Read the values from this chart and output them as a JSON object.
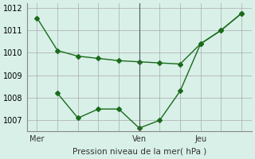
{
  "line1_x": [
    0,
    1,
    2,
    3,
    4,
    5,
    6,
    7,
    8,
    9,
    10
  ],
  "line1_y": [
    1011.55,
    1010.1,
    1009.85,
    1009.75,
    1009.65,
    1009.6,
    1009.55,
    1009.5,
    1010.4,
    1011.0,
    1011.75
  ],
  "line2_x": [
    1,
    2,
    3,
    4,
    5,
    6,
    7,
    8,
    9,
    10
  ],
  "line2_y": [
    1008.2,
    1007.1,
    1007.5,
    1007.5,
    1006.65,
    1007.0,
    1008.3,
    1010.4,
    1011.0,
    1011.75
  ],
  "line_color": "#1a6b1a",
  "marker": "D",
  "marker_size": 3,
  "xlabel": "Pression niveau de la mer( hPa )",
  "ylim": [
    1006.5,
    1012.2
  ],
  "yticks": [
    1007,
    1008,
    1009,
    1010,
    1011,
    1012
  ],
  "xtick_labels": [
    "Mer",
    "",
    "",
    "",
    "",
    "Ven",
    "",
    "",
    "Jeu",
    "",
    ""
  ],
  "xtick_positions": [
    0,
    1,
    2,
    3,
    4,
    5,
    6,
    7,
    8,
    9,
    10
  ],
  "vline_x": 5,
  "vline_color": "#555555",
  "bg_color": "#d8f0e8",
  "grid_color": "#aaaaaa",
  "font_color": "#333333"
}
